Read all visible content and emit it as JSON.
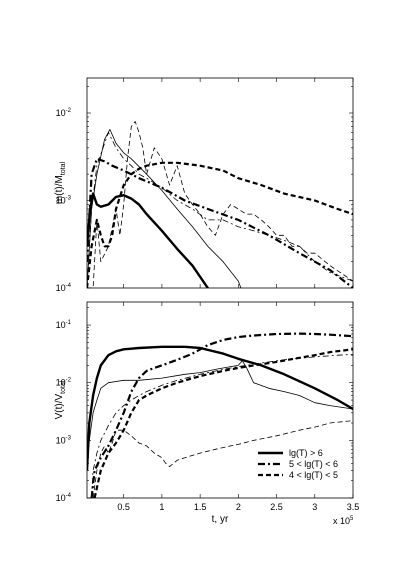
{
  "chart_data": [
    {
      "type": "line",
      "ylabel": "m(t)/M_total",
      "yscale": "log",
      "xlim": [
        0.02,
        3.5
      ],
      "ylim_exponents": [
        -4,
        -1.6
      ],
      "y_ticks": [
        {
          "base": "10",
          "exp": "-2",
          "e": -2
        },
        {
          "base": "10",
          "exp": "-3",
          "e": -3
        },
        {
          "base": "10",
          "exp": "-4",
          "e": -4
        }
      ],
      "grid": false,
      "series": [
        {
          "style": "thick-solid",
          "x": [
            0.02,
            0.06,
            0.1,
            0.15,
            0.2,
            0.3,
            0.4,
            0.5,
            0.6,
            0.7,
            0.8,
            1.0,
            1.2,
            1.4,
            1.6,
            1.75
          ],
          "y": [
            0.0003,
            0.0008,
            0.0012,
            0.0009,
            0.00085,
            0.0009,
            0.0011,
            0.00115,
            0.00105,
            0.0009,
            0.0007,
            0.00045,
            0.00028,
            0.00018,
            0.0001,
            6e-05
          ]
        },
        {
          "style": "thin-solid",
          "x": [
            0.02,
            0.08,
            0.15,
            0.25,
            0.32,
            0.4,
            0.5,
            0.6,
            0.8,
            1.0,
            1.2,
            1.4,
            1.6,
            1.8,
            2.0,
            2.1
          ],
          "y": [
            0.0001,
            0.0008,
            0.002,
            0.005,
            0.0065,
            0.0045,
            0.0035,
            0.003,
            0.002,
            0.0013,
            0.0008,
            0.0005,
            0.0003,
            0.0002,
            0.00012,
            7e-05
          ]
        },
        {
          "style": "thick-dashdot",
          "x": [
            0.02,
            0.08,
            0.15,
            0.25,
            0.35,
            0.5,
            0.7,
            1.0,
            1.3,
            1.6,
            2.0,
            2.4,
            2.8,
            3.2,
            3.5
          ],
          "y": [
            0.0002,
            0.002,
            0.003,
            0.0028,
            0.0025,
            0.0022,
            0.0018,
            0.0014,
            0.001,
            0.0008,
            0.0006,
            0.0004,
            0.00025,
            0.00016,
            0.0001
          ]
        },
        {
          "style": "thin-dashdot",
          "x": [
            0.02,
            0.08,
            0.15,
            0.25,
            0.3,
            0.4,
            0.5,
            0.6,
            0.7,
            0.8,
            1.0,
            1.2,
            1.4,
            1.6,
            1.8,
            2.0,
            2.2,
            2.4,
            2.6,
            2.8,
            3.0,
            3.2,
            3.5
          ],
          "y": [
            0.0001,
            0.0008,
            0.0025,
            0.0045,
            0.006,
            0.004,
            0.003,
            0.0025,
            0.002,
            0.0018,
            0.0014,
            0.001,
            0.0008,
            0.0006,
            0.0006,
            0.0005,
            0.00045,
            0.0004,
            0.00035,
            0.0003,
            0.0002,
            0.00015,
            0.00012
          ]
        },
        {
          "style": "thick-dashed",
          "x": [
            0.02,
            0.08,
            0.15,
            0.2,
            0.25,
            0.3,
            0.35,
            0.4,
            0.5,
            0.6,
            0.7,
            0.8,
            1.0,
            1.2,
            1.5,
            1.8,
            2.0,
            2.3,
            2.6,
            3.0,
            3.3,
            3.5
          ],
          "y": [
            0.0001,
            0.0003,
            0.0006,
            0.0004,
            0.0003,
            0.0003,
            0.0004,
            0.0008,
            0.0015,
            0.002,
            0.0023,
            0.0025,
            0.0027,
            0.0027,
            0.0025,
            0.0022,
            0.0018,
            0.0015,
            0.0012,
            0.001,
            0.0008,
            0.0007
          ]
        },
        {
          "style": "thin-dashed",
          "x": [
            0.02,
            0.1,
            0.15,
            0.2,
            0.3,
            0.4,
            0.45,
            0.5,
            0.55,
            0.6,
            0.65,
            0.7,
            0.75,
            0.8,
            0.9,
            1.0,
            1.1,
            1.2,
            1.3,
            1.4,
            1.5,
            1.6,
            1.7,
            1.8,
            1.9,
            2.0,
            2.1,
            2.2,
            2.3,
            2.4,
            2.5,
            2.6,
            2.7,
            2.8,
            2.9,
            3.0,
            3.2,
            3.5
          ],
          "y": [
            0.0001,
            0.0001,
            0.0006,
            0.0002,
            0.0003,
            0.0008,
            0.0004,
            0.0009,
            0.003,
            0.007,
            0.008,
            0.006,
            0.004,
            0.002,
            0.004,
            0.003,
            0.0015,
            0.0025,
            0.0012,
            0.0009,
            0.0007,
            0.0005,
            0.0004,
            0.0007,
            0.0009,
            0.0008,
            0.0007,
            0.0007,
            0.0006,
            0.0005,
            0.0004,
            0.0004,
            0.0003,
            0.0003,
            0.00025,
            0.00025,
            0.00018,
            0.00012
          ]
        }
      ]
    },
    {
      "type": "line",
      "ylabel": "V(t)/V_total",
      "xlabel": "t, yr",
      "yscale": "log",
      "xlim": [
        0.02,
        3.5
      ],
      "ylim_exponents": [
        -4,
        -0.6
      ],
      "x_ticks": [
        "0.5",
        "1",
        "1.5",
        "2",
        "2.5",
        "3",
        "3.5"
      ],
      "x_tick_values": [
        0.5,
        1,
        1.5,
        2,
        2.5,
        3,
        3.5
      ],
      "x_multiplier": {
        "base": "x 10",
        "exp": "5"
      },
      "y_ticks": [
        {
          "base": "10",
          "exp": "-1",
          "e": -1
        },
        {
          "base": "10",
          "exp": "-2",
          "e": -2
        },
        {
          "base": "10",
          "exp": "-3",
          "e": -3
        },
        {
          "base": "10",
          "exp": "-4",
          "e": -4
        }
      ],
      "grid": false,
      "legend": {
        "placement": "bottom-right",
        "entries": [
          {
            "label": "lg(T) > 6",
            "style": "thick-solid"
          },
          {
            "label": "5 < lg(T) < 6",
            "style": "thick-dashdot"
          },
          {
            "label": "4 < lg(T) < 5",
            "style": "thick-dashed"
          }
        ]
      },
      "series": [
        {
          "style": "thick-solid",
          "x": [
            0.02,
            0.05,
            0.1,
            0.15,
            0.2,
            0.3,
            0.4,
            0.5,
            0.7,
            1.0,
            1.3,
            1.5,
            1.8,
            2.0,
            2.3,
            2.6,
            3.0,
            3.3,
            3.5
          ],
          "y": [
            0.0003,
            0.002,
            0.006,
            0.012,
            0.02,
            0.03,
            0.035,
            0.038,
            0.04,
            0.042,
            0.042,
            0.04,
            0.032,
            0.026,
            0.02,
            0.014,
            0.008,
            0.005,
            0.0035
          ]
        },
        {
          "style": "thin-solid",
          "x": [
            0.02,
            0.05,
            0.1,
            0.15,
            0.2,
            0.3,
            0.5,
            0.7,
            1.0,
            1.3,
            1.5,
            1.7,
            1.9,
            2.0,
            2.05,
            2.1,
            2.2,
            2.4,
            2.6,
            2.8,
            3.0,
            3.2,
            3.5
          ],
          "y": [
            0.0003,
            0.001,
            0.003,
            0.005,
            0.008,
            0.01,
            0.011,
            0.011,
            0.012,
            0.014,
            0.015,
            0.017,
            0.019,
            0.02,
            0.024,
            0.019,
            0.01,
            0.008,
            0.007,
            0.006,
            0.0045,
            0.004,
            0.0035
          ]
        },
        {
          "style": "thick-dashdot",
          "x": [
            0.08,
            0.12,
            0.2,
            0.3,
            0.4,
            0.5,
            0.6,
            0.7,
            0.8,
            0.9,
            1.0,
            1.2,
            1.4,
            1.6,
            1.8,
            2.0,
            2.2,
            2.5,
            2.8,
            3.0,
            3.2,
            3.5
          ],
          "y": [
            0.0001,
            0.0003,
            0.0005,
            0.0008,
            0.0015,
            0.003,
            0.007,
            0.012,
            0.016,
            0.018,
            0.02,
            0.025,
            0.032,
            0.045,
            0.055,
            0.062,
            0.066,
            0.07,
            0.071,
            0.07,
            0.068,
            0.064
          ]
        },
        {
          "style": "thin-dashdot",
          "x": [
            0.08,
            0.1,
            0.15,
            0.2,
            0.3,
            0.4,
            0.5,
            0.6,
            0.7,
            0.8,
            1.0,
            1.2,
            1.5,
            1.8,
            2.0,
            2.3,
            2.6,
            3.0,
            3.3,
            3.5
          ],
          "y": [
            0.0001,
            0.0003,
            0.0006,
            0.001,
            0.0018,
            0.003,
            0.004,
            0.005,
            0.006,
            0.007,
            0.009,
            0.011,
            0.014,
            0.017,
            0.019,
            0.022,
            0.025,
            0.028,
            0.03,
            0.031
          ]
        },
        {
          "style": "thick-dashed",
          "x": [
            0.12,
            0.2,
            0.3,
            0.4,
            0.5,
            0.6,
            0.7,
            0.8,
            1.0,
            1.2,
            1.5,
            1.8,
            2.0,
            2.2,
            2.5,
            2.8,
            3.0,
            3.2,
            3.5
          ],
          "y": [
            0.0001,
            0.0003,
            0.0006,
            0.0009,
            0.0015,
            0.003,
            0.005,
            0.006,
            0.008,
            0.01,
            0.013,
            0.016,
            0.018,
            0.02,
            0.023,
            0.027,
            0.03,
            0.034,
            0.038
          ]
        },
        {
          "style": "thin-dashed",
          "x": [
            0.1,
            0.15,
            0.2,
            0.25,
            0.3,
            0.35,
            0.4,
            0.5,
            0.6,
            0.7,
            0.8,
            0.9,
            1.0,
            1.05,
            1.1,
            1.2,
            1.3,
            1.5,
            1.7,
            1.9,
            2.0,
            2.2,
            2.5,
            2.8,
            3.0,
            3.2,
            3.5
          ],
          "y": [
            0.0001,
            0.0003,
            0.0006,
            0.0008,
            0.0006,
            0.0009,
            0.0015,
            0.0015,
            0.0012,
            0.0009,
            0.0008,
            0.0006,
            0.0005,
            0.0004,
            0.00035,
            0.00045,
            0.0005,
            0.0006,
            0.0007,
            0.0008,
            0.00085,
            0.001,
            0.0012,
            0.0015,
            0.0017,
            0.002,
            0.0022
          ]
        }
      ]
    }
  ]
}
